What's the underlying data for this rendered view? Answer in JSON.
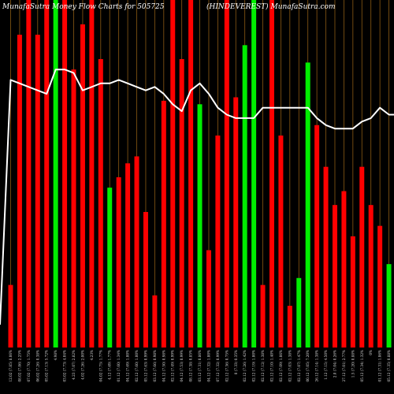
{
  "chart_data": {
    "type": "bar",
    "title_left": "MunafaSutra  Money Flow  Charts for 505725",
    "title_right": "(HINDEVEREST) MunafaSutra.com",
    "ylim": [
      0,
      100
    ],
    "grid": "vertical",
    "colors": {
      "background": "#000000",
      "up": "#00ee00",
      "down": "#ff0000",
      "line": "#ffffff",
      "grid": "#8b5a14"
    },
    "categories": [
      "12.02 (7.85) 8.06%",
      "08.02 (7.86) 2.25%",
      "07.02 (7.70) 1.75%",
      "06.02 (7.26) 0.38%",
      "05.02 (7.13) 5.72%",
      "4.98%",
      "03.02 (7.73) 4.04%",
      "4.23 (7.07) 2.82%",
      "4.02 (7.26) 2.00%",
      "4.23%",
      "04.02 (7.75) 1.77%",
      "4.12 (7.69) 1.77%",
      "01.12 (7.60) 1.34%",
      "04.12 (7.69) 1.00%",
      "02.12 (7.60) 1.00%",
      "05.12 (7.63) 0.99%",
      "03.12 (7.66) 0.98%",
      "04.12 (7.50) 0.98%",
      "02.12 (7.49) 0.99%",
      "04.12 (7.53) 0.99%",
      "08.12 (7.38) 0.85%",
      "03.12 (7.31) 0.86%",
      "04.12 (7.32) 1.00%",
      "07.12 (7.32) 0.99%",
      "02.12 (7.36) 0.75%",
      "0 (7.33) 0.35%",
      "02.12 (7.26) 1.42%",
      "02.12 (7.19) 1.00%",
      "02.12 (7.12) 1.38%",
      "02.12 (7.10) 1.40%",
      "02.12 (7.09) 1.06%",
      "02.12 (7.03) 1.38%",
      "02.12 (7.07) 1.47%",
      "00.12 (7.05) 7.20%",
      "26.12 (7.14) 1.38%",
      "1.12 (7.15) 4.50%",
      "2.0 (7.04) 0.26%",
      "27.12 (7.01) 2.77%",
      "1.5 (7.20) 0.88%",
      "05.12 (7.34) 1.32%",
      "0%",
      "01.12 (7.31) 1.06%",
      "05.12 (7.35) 0.88%",
      "3.0 (7.22) 1.38%",
      "00.12 (7.36) 2.52%"
    ],
    "series": [
      {
        "role": "money-flow-bars",
        "values": [
          18,
          90,
          100,
          90,
          100,
          100,
          100,
          80,
          93,
          100,
          83,
          46,
          49,
          53,
          55,
          39,
          15,
          71,
          100,
          83,
          100,
          70,
          28,
          61,
          100,
          72,
          87,
          100,
          18,
          100,
          61,
          12,
          20,
          82,
          64,
          52,
          41,
          45,
          32,
          52,
          41,
          35,
          24,
          12,
          18
        ],
        "up": [
          false,
          false,
          false,
          false,
          false,
          true,
          false,
          false,
          false,
          false,
          false,
          true,
          false,
          false,
          false,
          false,
          false,
          false,
          false,
          false,
          false,
          true,
          false,
          false,
          false,
          false,
          true,
          true,
          false,
          false,
          false,
          false,
          true,
          true,
          false,
          false,
          false,
          false,
          false,
          false,
          false,
          false,
          true,
          true,
          false
        ]
      },
      {
        "role": "price-line",
        "values": [
          77,
          76,
          75,
          74,
          73,
          80,
          80,
          79,
          74,
          75,
          76,
          76,
          77,
          76,
          75,
          74,
          75,
          73,
          70,
          68,
          74,
          76,
          73,
          69,
          67,
          66,
          66,
          66,
          69,
          69,
          69,
          69,
          69,
          69,
          66,
          64,
          63,
          63,
          63,
          65,
          66,
          69,
          67,
          67,
          68
        ]
      }
    ]
  }
}
